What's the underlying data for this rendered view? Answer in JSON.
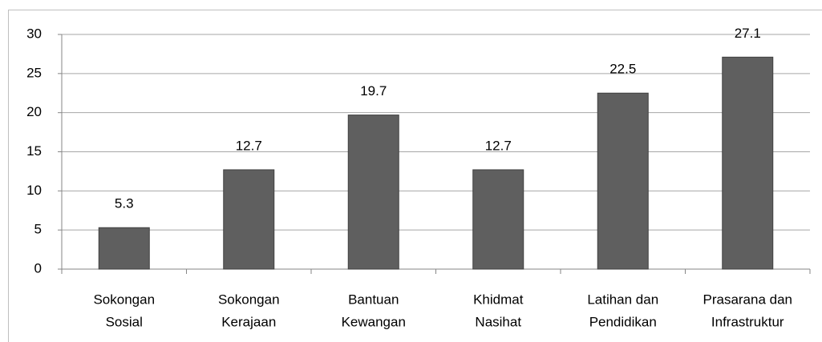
{
  "chart_data": {
    "type": "bar",
    "categories": [
      [
        "Sokongan",
        "Sosial"
      ],
      [
        "Sokongan",
        "Kerajaan"
      ],
      [
        "Bantuan",
        "Kewangan"
      ],
      [
        "Khidmat",
        "Nasihat"
      ],
      [
        "Latihan dan",
        "Pendidikan"
      ],
      [
        "Prasarana dan",
        "Infrastruktur"
      ]
    ],
    "values": [
      5.3,
      12.7,
      19.7,
      12.7,
      22.5,
      27.1
    ],
    "color": "#5f5f5f",
    "ylim": [
      0,
      30
    ],
    "yticks": [
      0,
      5,
      10,
      15,
      20,
      25,
      30
    ],
    "grid": true
  }
}
